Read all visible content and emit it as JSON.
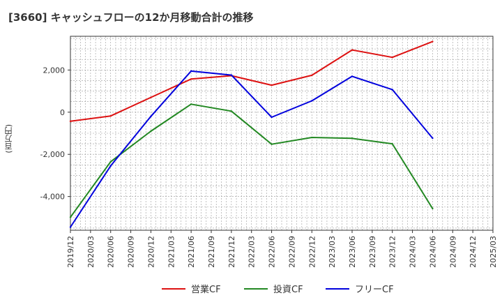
{
  "chart_data": {
    "type": "line",
    "title": "[3660]  キャッシュフローの12か月移動合計の推移",
    "xlabel": "",
    "ylabel": "(百万円)",
    "ylim": [
      -5600,
      3600
    ],
    "yticks": [
      -4000,
      -2000,
      0,
      2000
    ],
    "ytick_labels": [
      "-4,000",
      "-2,000",
      "0",
      "2,000"
    ],
    "categories": [
      "2019/12",
      "2020/03",
      "2020/06",
      "2020/09",
      "2020/12",
      "2021/03",
      "2021/06",
      "2021/09",
      "2021/12",
      "2022/03",
      "2022/06",
      "2022/09",
      "2022/12",
      "2023/03",
      "2023/06",
      "2023/09",
      "2023/12",
      "2024/03",
      "2024/06",
      "2024/09",
      "2024/12",
      "2025/03"
    ],
    "grid": true,
    "legend_position": "bottom",
    "series": [
      {
        "name": "営業CF",
        "color": "#dd1111",
        "x": [
          "2019/12",
          "2020/06",
          "2020/12",
          "2021/06",
          "2021/12",
          "2022/06",
          "2022/12",
          "2023/06",
          "2023/12",
          "2024/06"
        ],
        "values": [
          -430,
          -180,
          700,
          1570,
          1730,
          1280,
          1750,
          2950,
          2600,
          3350
        ]
      },
      {
        "name": "投資CF",
        "color": "#228822",
        "x": [
          "2019/12",
          "2020/06",
          "2020/12",
          "2021/06",
          "2021/12",
          "2022/06",
          "2022/12",
          "2023/06",
          "2023/12",
          "2024/06"
        ],
        "values": [
          -4980,
          -2350,
          -900,
          380,
          50,
          -1520,
          -1200,
          -1240,
          -1500,
          -4570
        ]
      },
      {
        "name": "フリーCF",
        "color": "#0000dd",
        "x": [
          "2019/12",
          "2020/06",
          "2020/12",
          "2021/06",
          "2021/12",
          "2022/06",
          "2022/12",
          "2023/06",
          "2023/12",
          "2024/06"
        ],
        "values": [
          -5450,
          -2550,
          -200,
          1950,
          1760,
          -240,
          540,
          1700,
          1070,
          -1230
        ]
      }
    ]
  }
}
